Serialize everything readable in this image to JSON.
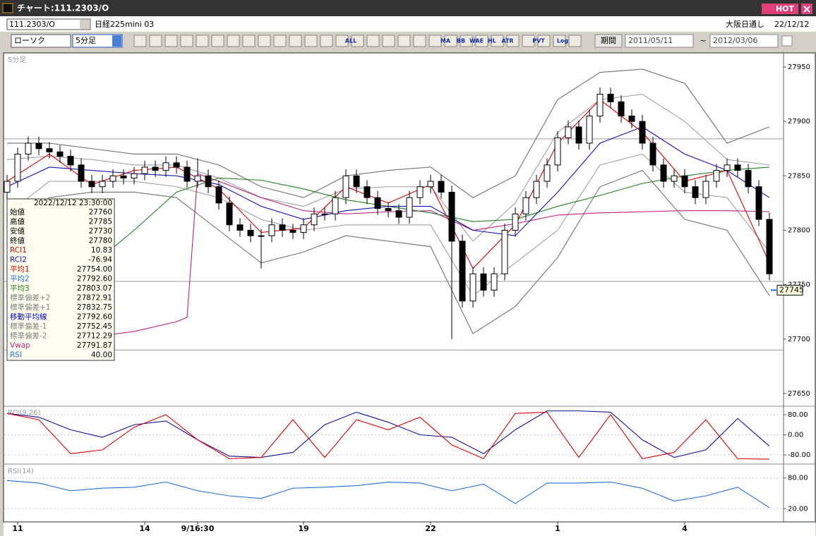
{
  "window": {
    "title": "チャート:111.2303/O",
    "hot": "HOT"
  },
  "toolbar": {
    "symbol": "111.2303/O",
    "name": "日経225mini 03",
    "session": "大阪日通し",
    "date": "22/12/12",
    "chart_style": "ローソク",
    "interval": "5分足",
    "period_button": "期間",
    "from": "2011/05/11",
    "separator": "~",
    "to": "2012/03/06",
    "icons": [
      "ALL",
      "MA",
      "BB",
      "WAE",
      "HL",
      "ATR",
      "PVT",
      "Log"
    ]
  },
  "info_panel": {
    "datetime": "2022/12/12 23:30:00",
    "rows": [
      {
        "label": "始値",
        "value": "27760",
        "color": "#000000"
      },
      {
        "label": "高値",
        "value": "27785",
        "color": "#000000"
      },
      {
        "label": "安値",
        "value": "27730",
        "color": "#000000"
      },
      {
        "label": "終値",
        "value": "27780",
        "color": "#000000"
      },
      {
        "label": "RCI1",
        "value": "10.83",
        "color": "#e00000"
      },
      {
        "label": "RCI2",
        "value": "-76.94",
        "color": "#1010a0"
      },
      {
        "label": "平均1",
        "value": "27754.00",
        "color": "#e00000"
      },
      {
        "label": "平均2",
        "value": "27792.60",
        "color": "#1e6ee0"
      },
      {
        "label": "平均3",
        "value": "27803.07",
        "color": "#208020"
      },
      {
        "label": "標準偏差+2",
        "value": "27872.91",
        "color": "#808080"
      },
      {
        "label": "標準偏差+1",
        "value": "27832.75",
        "color": "#808080"
      },
      {
        "label": "移動平均線",
        "value": "27792.60",
        "color": "#0000c0"
      },
      {
        "label": "標準偏差-1",
        "value": "27752.45",
        "color": "#808080"
      },
      {
        "label": "標準偏差-2",
        "value": "27712.29",
        "color": "#808080"
      },
      {
        "label": "Vwap",
        "value": "27791.87",
        "color": "#c0207a"
      },
      {
        "label": "RSI",
        "value": "40.00",
        "color": "#1e6ee0"
      }
    ]
  },
  "chart_data": [
    {
      "type": "candlestick",
      "title": "5分足",
      "ylim": [
        27639,
        27961
      ],
      "yticks": [
        27650,
        27700,
        27750,
        27800,
        27850,
        27900,
        27950
      ],
      "up_color": "#ffffff",
      "down_color": "#000000",
      "last_price": 27745,
      "reference_lines": [
        27884,
        27753,
        27690
      ],
      "categories": [
        null,
        "11",
        null,
        null,
        null,
        null,
        null,
        null,
        null,
        null,
        null,
        null,
        null,
        "14",
        null,
        null,
        null,
        null,
        "9/16:30",
        null,
        null,
        null,
        null,
        null,
        null,
        null,
        null,
        null,
        "19",
        null,
        null,
        null,
        null,
        null,
        null,
        null,
        null,
        null,
        null,
        null,
        "22",
        null,
        null,
        null,
        null,
        null,
        null,
        null,
        null,
        null,
        null,
        null,
        "1",
        null,
        null,
        null,
        null,
        null,
        null,
        null,
        null,
        null,
        null,
        null,
        "4",
        null,
        null,
        null,
        null,
        null,
        null,
        null,
        null
      ],
      "open": [
        27835,
        27845,
        27870,
        27880,
        27875,
        27872,
        27868,
        27860,
        27845,
        27840,
        27845,
        27850,
        27848,
        27852,
        27858,
        27855,
        27862,
        27858,
        27845,
        27850,
        27840,
        27825,
        27805,
        27800,
        27795,
        27795,
        27805,
        27800,
        27798,
        27805,
        27815,
        27815,
        27830,
        27850,
        27840,
        27830,
        27820,
        27818,
        27812,
        27830,
        27840,
        27845,
        27835,
        27790,
        27735,
        27760,
        27745,
        27760,
        27800,
        27815,
        27830,
        27845,
        27860,
        27885,
        27895,
        27880,
        27905,
        27925,
        27918,
        27905,
        27900,
        27880,
        27860,
        27845,
        27850,
        27840,
        27830,
        27845,
        27855,
        27860,
        27855,
        27840,
        27810
      ],
      "high": [
        27851,
        27876,
        27886,
        27886,
        27881,
        27878,
        27874,
        27866,
        27851,
        27851,
        27856,
        27856,
        27858,
        27864,
        27864,
        27868,
        27868,
        27864,
        27866,
        27856,
        27846,
        27831,
        27811,
        27806,
        27801,
        27811,
        27811,
        27806,
        27811,
        27821,
        27821,
        27836,
        27856,
        27856,
        27846,
        27836,
        27826,
        27824,
        27836,
        27846,
        27851,
        27851,
        27841,
        27796,
        27766,
        27766,
        27766,
        27806,
        27821,
        27836,
        27851,
        27866,
        27891,
        27901,
        27901,
        27911,
        27931,
        27931,
        27924,
        27911,
        27906,
        27886,
        27866,
        27856,
        27856,
        27846,
        27851,
        27861,
        27866,
        27866,
        27861,
        27846,
        27816
      ],
      "low": [
        27829,
        27839,
        27864,
        27869,
        27866,
        27862,
        27854,
        27839,
        27834,
        27834,
        27839,
        27842,
        27842,
        27846,
        27849,
        27849,
        27852,
        27839,
        27839,
        27834,
        27819,
        27799,
        27794,
        27789,
        27765,
        27789,
        27794,
        27792,
        27792,
        27799,
        27809,
        27809,
        27824,
        27834,
        27824,
        27814,
        27812,
        27806,
        27806,
        27824,
        27834,
        27829,
        27700,
        27729,
        27729,
        27739,
        27739,
        27754,
        27794,
        27809,
        27824,
        27839,
        27854,
        27879,
        27874,
        27874,
        27899,
        27912,
        27899,
        27894,
        27874,
        27854,
        27839,
        27839,
        27834,
        27824,
        27824,
        27839,
        27849,
        27849,
        27834,
        27804,
        27754
      ],
      "close": [
        27845,
        27870,
        27880,
        27875,
        27872,
        27868,
        27860,
        27845,
        27840,
        27845,
        27850,
        27848,
        27852,
        27858,
        27855,
        27862,
        27858,
        27845,
        27850,
        27840,
        27825,
        27805,
        27800,
        27795,
        27795,
        27805,
        27800,
        27798,
        27805,
        27815,
        27815,
        27830,
        27850,
        27840,
        27830,
        27820,
        27818,
        27812,
        27830,
        27840,
        27845,
        27835,
        27790,
        27735,
        27760,
        27745,
        27760,
        27800,
        27815,
        27830,
        27845,
        27860,
        27885,
        27895,
        27880,
        27905,
        27925,
        27918,
        27905,
        27900,
        27880,
        27860,
        27845,
        27850,
        27840,
        27830,
        27845,
        27855,
        27860,
        27855,
        27840,
        27810,
        27760
      ],
      "series": [
        {
          "color": "#a0a0a0",
          "x": [
            0,
            4,
            8,
            12,
            16,
            20,
            24,
            28,
            32,
            36,
            40,
            44,
            48,
            52,
            56,
            60,
            64,
            68,
            72
          ],
          "values": [
            27865,
            27868,
            27865,
            27860,
            27860,
            27848,
            27830,
            27822,
            27838,
            27840,
            27840,
            27790,
            27825,
            27890,
            27920,
            27925,
            27900,
            27865,
            27860
          ]
        },
        {
          "color": "#a0a0a0",
          "x": [
            0,
            4,
            8,
            12,
            16,
            20,
            24,
            28,
            32,
            36,
            40,
            44,
            48,
            52,
            56,
            60,
            64,
            68,
            72
          ],
          "values": [
            27815,
            27845,
            27845,
            27845,
            27840,
            27830,
            27810,
            27800,
            27805,
            27805,
            27805,
            27740,
            27770,
            27800,
            27860,
            27870,
            27835,
            27830,
            27780
          ]
        },
        {
          "color": "#707070",
          "x": [
            0,
            4,
            8,
            12,
            16,
            20,
            24,
            28,
            32,
            36,
            40,
            44,
            48,
            52,
            56,
            60,
            64,
            68,
            72
          ],
          "values": [
            27880,
            27880,
            27875,
            27870,
            27870,
            27860,
            27840,
            27830,
            27850,
            27855,
            27858,
            27830,
            27850,
            27920,
            27945,
            27948,
            27935,
            27880,
            27895
          ]
        },
        {
          "color": "#707070",
          "x": [
            0,
            4,
            8,
            12,
            16,
            20,
            24,
            28,
            32,
            36,
            40,
            44,
            48,
            52,
            56,
            60,
            64,
            68,
            72
          ],
          "values": [
            27800,
            27830,
            27835,
            27835,
            27830,
            27800,
            27770,
            27780,
            27795,
            27790,
            27785,
            27705,
            27730,
            27775,
            27840,
            27855,
            27810,
            27800,
            27740
          ]
        },
        {
          "color": "#c0207a",
          "x": [
            8,
            12,
            16,
            17,
            18,
            20,
            24,
            28,
            32,
            36,
            40,
            44,
            48,
            52,
            56,
            60,
            64,
            68,
            72
          ],
          "values": [
            27702,
            27707,
            27716,
            27720,
            27852,
            27845,
            27830,
            27818,
            27815,
            27817,
            27818,
            27800,
            27806,
            27814,
            27816,
            27817,
            27818,
            27818,
            27817
          ]
        },
        {
          "color": "#208020",
          "x": [
            8,
            12,
            16,
            20,
            24,
            28,
            32,
            36,
            40,
            44,
            48,
            52,
            56,
            60,
            64,
            68,
            72
          ],
          "values": [
            27768,
            27800,
            27835,
            27848,
            27846,
            27838,
            27828,
            27822,
            27816,
            27808,
            27810,
            27822,
            27832,
            27843,
            27850,
            27855,
            27858
          ]
        },
        {
          "color": "#1010c0",
          "x": [
            0,
            4,
            8,
            12,
            16,
            20,
            24,
            28,
            32,
            36,
            40,
            44,
            48,
            52,
            56,
            60,
            64,
            68,
            72
          ],
          "values": [
            27840,
            27858,
            27855,
            27852,
            27850,
            27842,
            27822,
            27810,
            27818,
            27822,
            27822,
            27800,
            27795,
            27835,
            27880,
            27895,
            27870,
            27855,
            27830
          ]
        },
        {
          "color": "#e00000",
          "x": [
            0,
            4,
            8,
            12,
            16,
            20,
            24,
            28,
            32,
            36,
            40,
            44,
            48,
            52,
            56,
            60,
            64,
            68,
            72
          ],
          "values": [
            27845,
            27870,
            27842,
            27855,
            27858,
            27838,
            27798,
            27802,
            27840,
            27825,
            27842,
            27765,
            27805,
            27880,
            27920,
            27890,
            27845,
            27855,
            27770
          ]
        }
      ]
    },
    {
      "type": "line",
      "title": "RCI(9,26)",
      "ylim": [
        -108,
        108
      ],
      "grid": true,
      "yticks": [
        {
          "value": 80,
          "label": "80.00"
        },
        {
          "value": 0,
          "label": "0.00"
        },
        {
          "value": -80,
          "label": "-80.00"
        }
      ],
      "series": [
        {
          "color": "#1010a0",
          "x": [
            0,
            3,
            6,
            9,
            12,
            15,
            18,
            21,
            24,
            27,
            30,
            33,
            36,
            39,
            42,
            45,
            48,
            51,
            54,
            57,
            60,
            63,
            66,
            69,
            72
          ],
          "values": [
            85,
            70,
            20,
            -10,
            40,
            55,
            -20,
            -85,
            -90,
            -70,
            40,
            90,
            50,
            0,
            -10,
            -75,
            20,
            95,
            95,
            90,
            -20,
            -90,
            -60,
            65,
            -45
          ]
        },
        {
          "color": "#e00000",
          "x": [
            0,
            3,
            6,
            9,
            12,
            15,
            18,
            21,
            24,
            27,
            30,
            33,
            36,
            39,
            42,
            45,
            48,
            51,
            54,
            57,
            60,
            63,
            66,
            69,
            72
          ],
          "values": [
            85,
            60,
            -75,
            -60,
            30,
            80,
            -20,
            -95,
            -90,
            60,
            -90,
            60,
            20,
            70,
            -40,
            -95,
            85,
            90,
            -90,
            80,
            -95,
            -70,
            60,
            -95,
            -97
          ]
        }
      ]
    },
    {
      "type": "line",
      "title": "RSI(14)",
      "ylim": [
        -3,
        103
      ],
      "grid": true,
      "yticks": [
        {
          "value": 80,
          "label": "80.00"
        },
        {
          "value": 20,
          "label": "20.00"
        }
      ],
      "series": [
        {
          "color": "#1e6ee0",
          "x": [
            0,
            3,
            6,
            9,
            12,
            15,
            18,
            21,
            24,
            27,
            30,
            33,
            36,
            39,
            42,
            45,
            48,
            51,
            54,
            57,
            60,
            63,
            66,
            69,
            72
          ],
          "values": [
            75,
            70,
            55,
            60,
            62,
            72,
            55,
            45,
            40,
            60,
            62,
            65,
            72,
            70,
            55,
            68,
            30,
            70,
            70,
            72,
            60,
            35,
            45,
            62,
            22
          ]
        }
      ]
    }
  ]
}
